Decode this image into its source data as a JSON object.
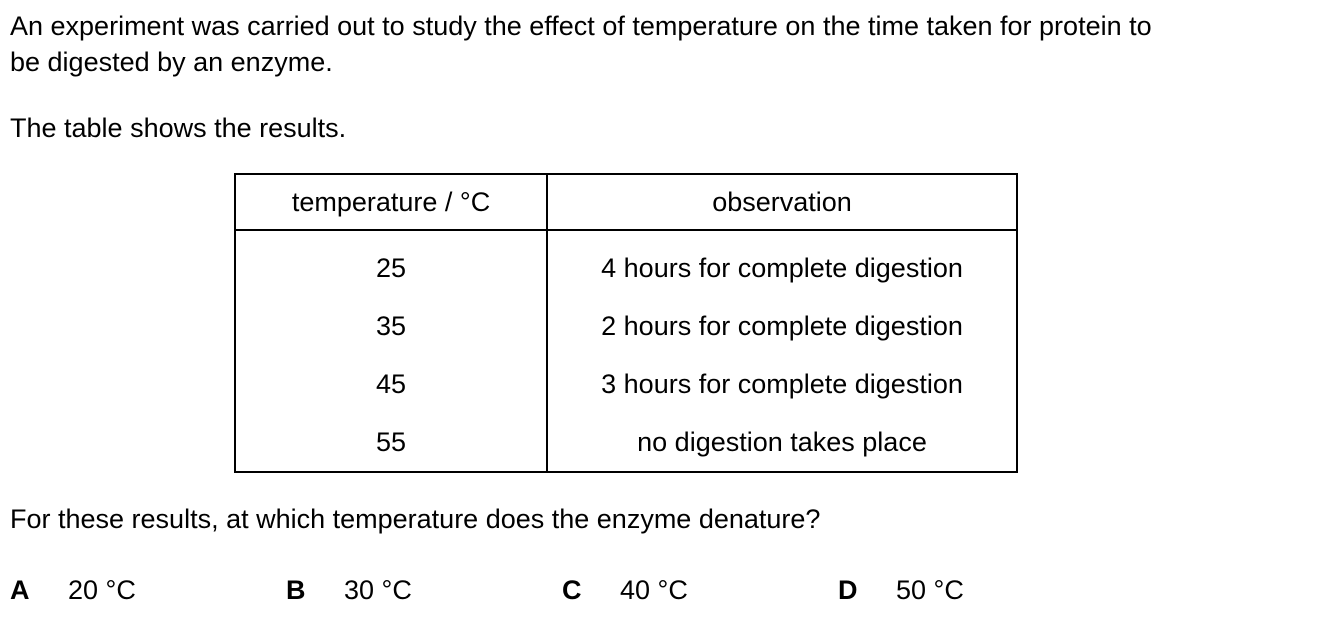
{
  "intro": {
    "line1": "An experiment was carried out to study the effect of temperature on the time taken for protein to",
    "line2": "be digested by an enzyme."
  },
  "table_caption": "The table shows the results.",
  "table": {
    "headers": [
      "temperature / °C",
      "observation"
    ],
    "rows": [
      [
        "25",
        "4 hours for complete digestion"
      ],
      [
        "35",
        "2 hours for complete digestion"
      ],
      [
        "45",
        "3 hours for complete digestion"
      ],
      [
        "55",
        "no digestion takes place"
      ]
    ]
  },
  "question": "For these results, at which temperature does the enzyme denature?",
  "options": [
    {
      "letter": "A",
      "text": "20 °C"
    },
    {
      "letter": "B",
      "text": "30 °C"
    },
    {
      "letter": "C",
      "text": "40 °C"
    },
    {
      "letter": "D",
      "text": "50 °C"
    }
  ]
}
